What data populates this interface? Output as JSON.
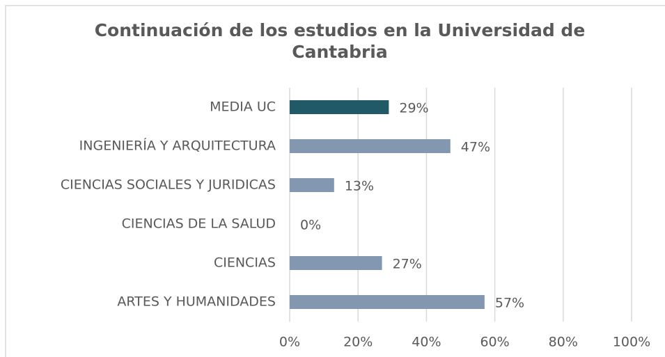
{
  "chart_data": {
    "type": "bar",
    "orientation": "horizontal",
    "title": "Continuación de los estudios en la Universidad de Cantabria",
    "categories": [
      "MEDIA UC",
      "INGENIERÍA Y ARQUITECTURA",
      "CIENCIAS SOCIALES Y JURIDICAS",
      "CIENCIAS DE LA SALUD",
      "CIENCIAS",
      "ARTES Y HUMANIDADES"
    ],
    "values": [
      29,
      47,
      13,
      0,
      27,
      57
    ],
    "value_labels": [
      "29%",
      "47%",
      "13%",
      "0%",
      "27%",
      "57%"
    ],
    "colors": [
      "#215967",
      "#8497b0",
      "#8497b0",
      "#8497b0",
      "#8497b0",
      "#8497b0"
    ],
    "xlim": [
      0,
      100
    ],
    "xticks": [
      {
        "value": 0,
        "label": "0%"
      },
      {
        "value": 20,
        "label": "20%"
      },
      {
        "value": 40,
        "label": "40%"
      },
      {
        "value": 60,
        "label": "60%"
      },
      {
        "value": 80,
        "label": "80%"
      },
      {
        "value": 100,
        "label": "100%"
      }
    ],
    "grid": true
  }
}
